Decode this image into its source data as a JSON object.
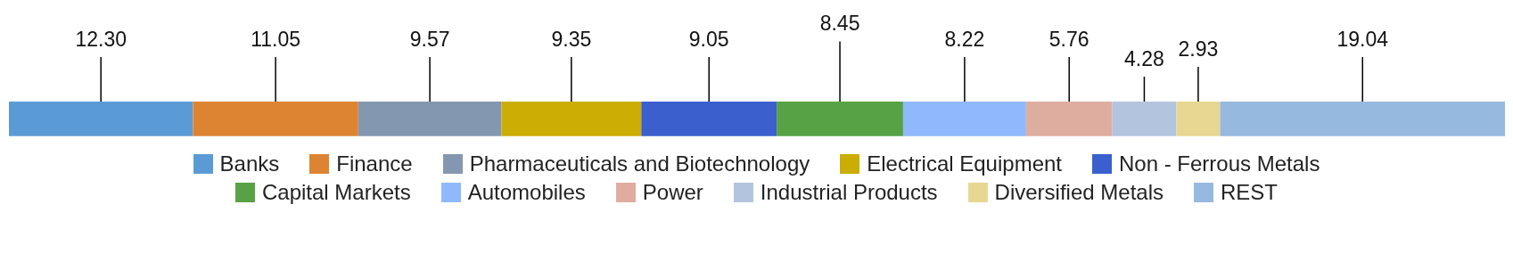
{
  "chart_data": {
    "type": "bar",
    "orientation": "horizontal",
    "stacked": true,
    "categories": [
      null
    ],
    "legend": "bottom",
    "series": [
      {
        "name": "Banks",
        "color": "#5b9bd5",
        "values": [
          12.3
        ],
        "value_labels": [
          "12.30"
        ]
      },
      {
        "name": "Finance",
        "color": "#dd8433",
        "values": [
          11.05
        ],
        "value_labels": [
          "11.05"
        ]
      },
      {
        "name": "Pharmaceuticals and Biotechnology",
        "color": "#8497b0",
        "values": [
          9.57
        ],
        "value_labels": [
          "9.57"
        ]
      },
      {
        "name": "Electrical Equipment",
        "color": "#ccad04",
        "values": [
          9.35
        ],
        "value_labels": [
          "9.35"
        ]
      },
      {
        "name": "Non - Ferrous Metals",
        "color": "#3b5fcd",
        "values": [
          9.05
        ],
        "value_labels": [
          "9.05"
        ]
      },
      {
        "name": "Capital Markets",
        "color": "#56a244",
        "values": [
          8.45
        ],
        "value_labels": [
          "8.45"
        ]
      },
      {
        "name": "Automobiles",
        "color": "#8fb9fc",
        "values": [
          8.22
        ],
        "value_labels": [
          "8.22"
        ]
      },
      {
        "name": "Power",
        "color": "#dfada0",
        "values": [
          5.76
        ],
        "value_labels": [
          "5.76"
        ]
      },
      {
        "name": "Industrial Products",
        "color": "#b3c4df",
        "values": [
          4.28
        ],
        "value_labels": [
          "4.28"
        ]
      },
      {
        "name": "Diversified Metals",
        "color": "#e8d792",
        "values": [
          2.93
        ],
        "value_labels": [
          "2.93"
        ]
      },
      {
        "name": "REST",
        "color": "#96b9df",
        "values": [
          19.04
        ],
        "value_labels": [
          "19.04"
        ]
      }
    ]
  }
}
